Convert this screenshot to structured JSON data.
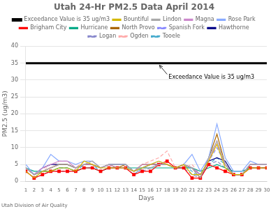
{
  "chart_data": {
    "type": "line",
    "title": "Utah 24-Hr PM2.5 Data April 2014",
    "x_label": "Days",
    "y_label": "PM2.5 (ug/m3)",
    "footer": "Utah Division of Air Quality",
    "x": [
      1,
      2,
      3,
      4,
      5,
      6,
      7,
      8,
      9,
      10,
      11,
      12,
      13,
      14,
      15,
      16,
      17,
      18,
      19,
      20,
      21,
      22,
      23,
      24,
      25,
      26,
      27,
      28,
      29,
      30
    ],
    "xlim": [
      1,
      30
    ],
    "xticks": [
      1,
      2,
      3,
      4,
      5,
      6,
      7,
      8,
      9,
      10,
      11,
      12,
      13,
      14,
      15,
      16,
      17,
      18,
      19,
      20,
      21,
      22,
      23,
      24,
      25,
      26,
      27,
      28,
      29,
      30
    ],
    "ylim": [
      0,
      40
    ],
    "yticks": [
      0,
      5,
      10,
      15,
      20,
      25,
      30,
      35,
      40
    ],
    "grid": "y",
    "legend": "top",
    "series": [
      {
        "name": "Bountiful",
        "color": "#d4b800",
        "line_style": "solid",
        "values": [
          3,
          1,
          3,
          3,
          4,
          4,
          3,
          6,
          5,
          4,
          4,
          4,
          4,
          3,
          4,
          5,
          6,
          5,
          4,
          5,
          2,
          2,
          6,
          11,
          4,
          2,
          2,
          4,
          4,
          4
        ]
      },
      {
        "name": "Lindon",
        "color": "#aaaaaa",
        "line_style": "solid",
        "values": [
          4,
          2,
          3,
          4,
          5,
          5,
          4,
          5,
          6,
          4,
          5,
          5,
          5,
          3,
          4,
          4,
          5,
          5,
          4,
          5,
          4,
          1,
          7,
          12,
          5,
          2,
          2,
          5,
          5,
          5
        ]
      },
      {
        "name": "Magna",
        "color": "#cc88cc",
        "line_style": "solid",
        "values": [
          4,
          2,
          4,
          5,
          6,
          6,
          4,
          5,
          5,
          4,
          5,
          4,
          4,
          3,
          5,
          5,
          5,
          5,
          4,
          5,
          4,
          2,
          6,
          12,
          5,
          2,
          2,
          5,
          5,
          5
        ]
      },
      {
        "name": "Rose Park",
        "color": "#88aaff",
        "line_style": "solid",
        "values": [
          5,
          2,
          4,
          8,
          6,
          6,
          5,
          6,
          6,
          4,
          5,
          5,
          5,
          3,
          4,
          5,
          6,
          5,
          4,
          5,
          8,
          3,
          7,
          17,
          7,
          3,
          3,
          6,
          5,
          5
        ]
      },
      {
        "name": "Exceedance Value is 35 ug/m3",
        "color": "#000000",
        "line_style": "solid",
        "values": [
          35,
          35,
          35,
          35,
          35,
          35,
          35,
          35,
          35,
          35,
          35,
          35,
          35,
          35,
          35,
          35,
          35,
          35,
          35,
          35,
          35,
          35,
          35,
          35,
          35,
          35,
          35,
          35,
          35,
          35
        ]
      },
      {
        "name": "Brigham City",
        "color": "#ff0000",
        "line_style": "solid",
        "marker": "square",
        "values": [
          3,
          1,
          2,
          3,
          3,
          3,
          3,
          4,
          4,
          3,
          4,
          4,
          4,
          2,
          3,
          3,
          5,
          6,
          4,
          4,
          1,
          1,
          5,
          4,
          3,
          2,
          2,
          4,
          4,
          4
        ]
      },
      {
        "name": "Hurricane",
        "color": "#00aa88",
        "line_style": "solid",
        "values": [
          4,
          3,
          3,
          3,
          4,
          4,
          3,
          4,
          4,
          3,
          4,
          4,
          4,
          4,
          4,
          4,
          4,
          4,
          4,
          4,
          4,
          3,
          4,
          5,
          4,
          3,
          3,
          4,
          4,
          4
        ]
      },
      {
        "name": "North Provo",
        "color": "#aa6600",
        "line_style": "solid",
        "values": [
          4,
          2,
          3,
          4,
          5,
          5,
          4,
          5,
          5,
          4,
          5,
          4,
          5,
          3,
          5,
          5,
          5,
          5,
          4,
          5,
          4,
          1,
          7,
          14,
          5,
          2,
          2,
          5,
          5,
          5
        ]
      },
      {
        "name": "Spanish Fork",
        "color": "#8888ff",
        "line_style": "dashed",
        "values": [
          4,
          2,
          3,
          4,
          5,
          5,
          4,
          5,
          5,
          4,
          5,
          4,
          4,
          3,
          4,
          5,
          5,
          5,
          4,
          4,
          4,
          1,
          6,
          10,
          5,
          2,
          2,
          5,
          5,
          5
        ]
      },
      {
        "name": "Hawthorne",
        "color": "#000088",
        "line_style": "solid",
        "values": [
          4,
          2,
          4,
          5,
          5,
          5,
          4,
          5,
          5,
          4,
          5,
          5,
          5,
          3,
          4,
          5,
          5,
          5,
          4,
          5,
          4,
          2,
          6,
          7,
          6,
          2,
          2,
          5,
          5,
          5
        ]
      },
      {
        "name": "Logan",
        "color": "#8888cc",
        "line_style": "dashed",
        "values": [
          3,
          1,
          2,
          3,
          3,
          3,
          3,
          4,
          4,
          3,
          4,
          4,
          4,
          3,
          3,
          4,
          5,
          5,
          4,
          4,
          2,
          1,
          5,
          6,
          4,
          2,
          2,
          4,
          4,
          4
        ]
      },
      {
        "name": "Ogden",
        "color": "#ffaaaa",
        "line_style": "dashed",
        "values": [
          4,
          2,
          4,
          4,
          6,
          6,
          4,
          6,
          6,
          4,
          5,
          5,
          5,
          3,
          5,
          6,
          7,
          9,
          4,
          4,
          5,
          2,
          6,
          11,
          5,
          2,
          2,
          5,
          5,
          5
        ]
      },
      {
        "name": "Tooele",
        "color": "#44aacc",
        "line_style": "dashed",
        "values": [
          3,
          1,
          3,
          3,
          4,
          4,
          3,
          5,
          5,
          3,
          4,
          4,
          4,
          2,
          4,
          4,
          5,
          5,
          4,
          5,
          3,
          1,
          5,
          7,
          5,
          2,
          2,
          4,
          4,
          4
        ]
      }
    ],
    "annotations": [
      {
        "text": "Exceedance Value is 35 ug/m3",
        "x": 17,
        "y": 35
      }
    ]
  }
}
